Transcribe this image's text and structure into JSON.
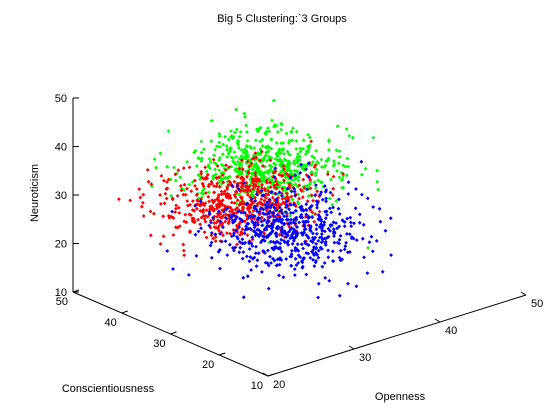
{
  "chart_data": {
    "type": "scatter",
    "title": "Big 5 Clustering:`3 Groups",
    "xlabel": "Openness",
    "ylabel": "Conscientiousness",
    "zlabel": "Neuroticism",
    "xlim": [
      20,
      50
    ],
    "ylim": [
      10,
      50
    ],
    "zlim": [
      10,
      50
    ],
    "xticks": [
      20,
      30,
      40,
      50
    ],
    "yticks": [
      10,
      20,
      30,
      40,
      50
    ],
    "zticks": [
      10,
      20,
      30,
      40,
      50
    ],
    "grid": false,
    "legend": "none",
    "marker": "diamond",
    "series": [
      {
        "color": "#00ff00",
        "approx_count": 600,
        "center": {
          "x": 30.5,
          "y": 29,
          "z": 39
        },
        "spread": {
          "x": 3.5,
          "y": 5,
          "z": 3
        }
      },
      {
        "color": "#ff0000",
        "approx_count": 600,
        "center": {
          "x": 29,
          "y": 32,
          "z": 31.5
        },
        "spread": {
          "x": 3.5,
          "y": 5,
          "z": 2.6
        }
      },
      {
        "color": "#0000ff",
        "approx_count": 600,
        "center": {
          "x": 33,
          "y": 29,
          "z": 24
        },
        "spread": {
          "x": 3.5,
          "y": 5,
          "z": 3.5
        }
      }
    ]
  }
}
